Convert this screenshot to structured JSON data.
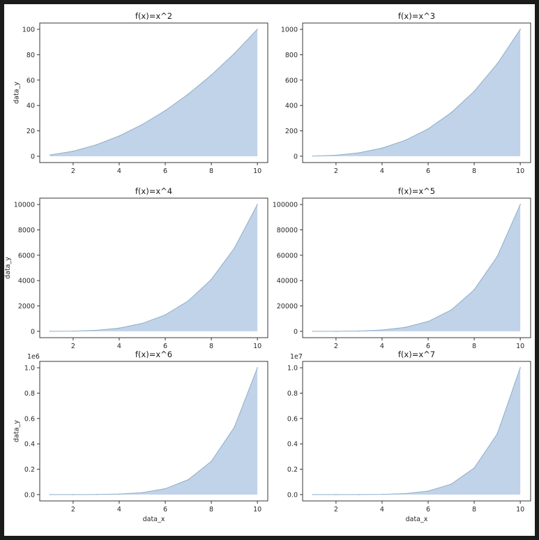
{
  "chart_data": [
    {
      "type": "area",
      "title": "f(x)=x^2",
      "xlabel": "",
      "ylabel": "data_y",
      "x": [
        1,
        2,
        3,
        4,
        5,
        6,
        7,
        8,
        9,
        10
      ],
      "y": [
        1,
        4,
        9,
        16,
        25,
        36,
        49,
        64,
        81,
        100
      ],
      "xlim": [
        0.55,
        10.45
      ],
      "ylim": [
        -4.95,
        104.95
      ],
      "xticks": [
        2,
        4,
        6,
        8,
        10
      ],
      "xtick_labels": [
        "2",
        "4",
        "6",
        "8",
        "10"
      ],
      "yticks": [
        0,
        20,
        40,
        60,
        80,
        100
      ],
      "ytick_labels": [
        "0",
        "20",
        "40",
        "60",
        "80",
        "100"
      ],
      "offset_text": "",
      "fill_color": "#c0d3e8",
      "line_color": "#8fadc8",
      "grid": false
    },
    {
      "type": "area",
      "title": "f(x)=x^3",
      "xlabel": "",
      "ylabel": "",
      "x": [
        1,
        2,
        3,
        4,
        5,
        6,
        7,
        8,
        9,
        10
      ],
      "y": [
        1,
        8,
        27,
        64,
        125,
        216,
        343,
        512,
        729,
        1000
      ],
      "xlim": [
        0.55,
        10.45
      ],
      "ylim": [
        -49.95,
        1049.95
      ],
      "xticks": [
        2,
        4,
        6,
        8,
        10
      ],
      "xtick_labels": [
        "2",
        "4",
        "6",
        "8",
        "10"
      ],
      "yticks": [
        0,
        200,
        400,
        600,
        800,
        1000
      ],
      "ytick_labels": [
        "0",
        "200",
        "400",
        "600",
        "800",
        "1000"
      ],
      "offset_text": "",
      "fill_color": "#c0d3e8",
      "line_color": "#8fadc8",
      "grid": false
    },
    {
      "type": "area",
      "title": "f(x)=x^4",
      "xlabel": "",
      "ylabel": "data_y",
      "x": [
        1,
        2,
        3,
        4,
        5,
        6,
        7,
        8,
        9,
        10
      ],
      "y": [
        1,
        16,
        81,
        256,
        625,
        1296,
        2401,
        4096,
        6561,
        10000
      ],
      "xlim": [
        0.55,
        10.45
      ],
      "ylim": [
        -499.95,
        10499.95
      ],
      "xticks": [
        2,
        4,
        6,
        8,
        10
      ],
      "xtick_labels": [
        "2",
        "4",
        "6",
        "8",
        "10"
      ],
      "yticks": [
        0,
        2000,
        4000,
        6000,
        8000,
        10000
      ],
      "ytick_labels": [
        "0",
        "2000",
        "4000",
        "6000",
        "8000",
        "10000"
      ],
      "offset_text": "",
      "fill_color": "#c0d3e8",
      "line_color": "#8fadc8",
      "grid": false
    },
    {
      "type": "area",
      "title": "f(x)=x^5",
      "xlabel": "",
      "ylabel": "",
      "x": [
        1,
        2,
        3,
        4,
        5,
        6,
        7,
        8,
        9,
        10
      ],
      "y": [
        1,
        32,
        243,
        1024,
        3125,
        7776,
        16807,
        32768,
        59049,
        100000
      ],
      "xlim": [
        0.55,
        10.45
      ],
      "ylim": [
        -4999.95,
        104999.95
      ],
      "xticks": [
        2,
        4,
        6,
        8,
        10
      ],
      "xtick_labels": [
        "2",
        "4",
        "6",
        "8",
        "10"
      ],
      "yticks": [
        0,
        20000,
        40000,
        60000,
        80000,
        100000
      ],
      "ytick_labels": [
        "0",
        "20000",
        "40000",
        "60000",
        "80000",
        "100000"
      ],
      "offset_text": "",
      "fill_color": "#c0d3e8",
      "line_color": "#8fadc8",
      "grid": false
    },
    {
      "type": "area",
      "title": "f(x)=x^6",
      "xlabel": "data_x",
      "ylabel": "data_y",
      "x": [
        1,
        2,
        3,
        4,
        5,
        6,
        7,
        8,
        9,
        10
      ],
      "y": [
        1,
        64,
        729,
        4096,
        15625,
        46656,
        117649,
        262144,
        531441,
        1000000
      ],
      "xlim": [
        0.55,
        10.45
      ],
      "ylim": [
        -49999.95,
        1049999.95
      ],
      "xticks": [
        2,
        4,
        6,
        8,
        10
      ],
      "xtick_labels": [
        "2",
        "4",
        "6",
        "8",
        "10"
      ],
      "yticks": [
        0,
        200000,
        400000,
        600000,
        800000,
        1000000
      ],
      "ytick_labels": [
        "0.0",
        "0.2",
        "0.4",
        "0.6",
        "0.8",
        "1.0"
      ],
      "offset_text": "1e6",
      "fill_color": "#c0d3e8",
      "line_color": "#8fadc8",
      "grid": false
    },
    {
      "type": "area",
      "title": "f(x)=x^7",
      "xlabel": "data_x",
      "ylabel": "",
      "x": [
        1,
        2,
        3,
        4,
        5,
        6,
        7,
        8,
        9,
        10
      ],
      "y": [
        1,
        128,
        2187,
        16384,
        78125,
        279936,
        823543,
        2097152,
        4782969,
        10000000
      ],
      "xlim": [
        0.55,
        10.45
      ],
      "ylim": [
        -499999.95,
        10499999.95
      ],
      "xticks": [
        2,
        4,
        6,
        8,
        10
      ],
      "xtick_labels": [
        "2",
        "4",
        "6",
        "8",
        "10"
      ],
      "yticks": [
        0,
        2000000,
        4000000,
        6000000,
        8000000,
        10000000
      ],
      "ytick_labels": [
        "0.0",
        "0.2",
        "0.4",
        "0.6",
        "0.8",
        "1.0"
      ],
      "offset_text": "1e7",
      "fill_color": "#c0d3e8",
      "line_color": "#8fadc8",
      "grid": false
    }
  ]
}
